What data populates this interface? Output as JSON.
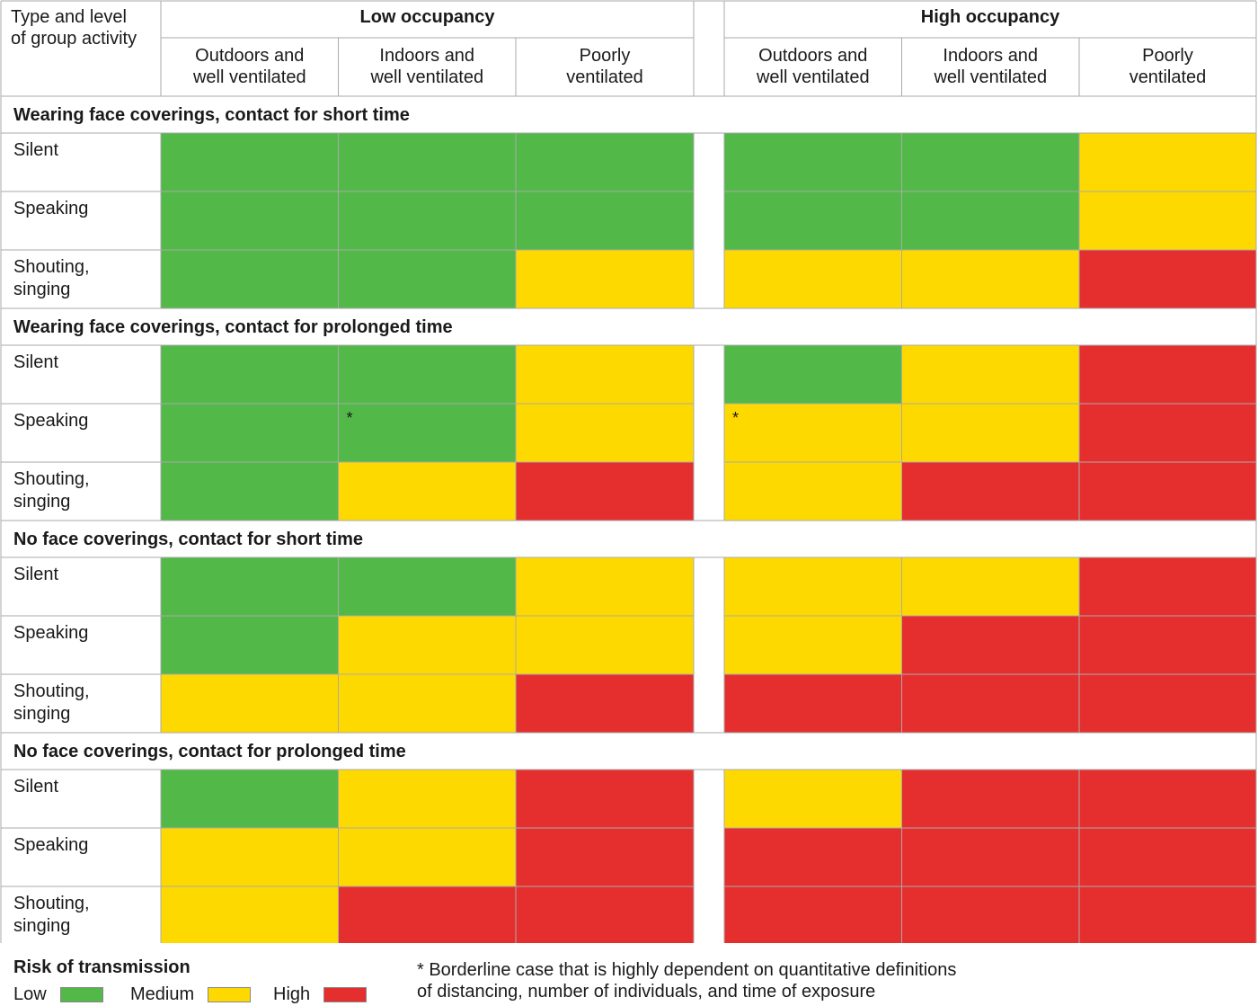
{
  "header": {
    "corner_label": [
      "Type and level",
      "of group activity"
    ],
    "groups": [
      "Low occupancy",
      "High occupancy"
    ],
    "columns": [
      [
        "Outdoors and",
        "well ventilated"
      ],
      [
        "Indoors and",
        "well ventilated"
      ],
      [
        "Poorly",
        "ventilated"
      ]
    ]
  },
  "colors": {
    "low": "#52b848",
    "medium": "#fed900",
    "high": "#e52f2f"
  },
  "chart_data": {
    "type": "heatmap",
    "title": "",
    "value_scale": [
      "low",
      "medium",
      "high"
    ],
    "sections": [
      {
        "title": "Wearing face coverings, contact for short time",
        "rows": [
          {
            "label": [
              "Silent"
            ],
            "low_occupancy": [
              "low",
              "low",
              "low"
            ],
            "high_occupancy": [
              "low",
              "low",
              "medium"
            ]
          },
          {
            "label": [
              "Speaking"
            ],
            "low_occupancy": [
              "low",
              "low",
              "low"
            ],
            "high_occupancy": [
              "low",
              "low",
              "medium"
            ]
          },
          {
            "label": [
              "Shouting,",
              "singing"
            ],
            "low_occupancy": [
              "low",
              "low",
              "medium"
            ],
            "high_occupancy": [
              "medium",
              "medium",
              "high"
            ]
          }
        ]
      },
      {
        "title": "Wearing face coverings, contact for prolonged time",
        "rows": [
          {
            "label": [
              "Silent"
            ],
            "low_occupancy": [
              "low",
              "low",
              "medium"
            ],
            "high_occupancy": [
              "low",
              "medium",
              "high"
            ]
          },
          {
            "label": [
              "Speaking"
            ],
            "low_occupancy": [
              "low",
              "low",
              "medium"
            ],
            "high_occupancy": [
              "medium",
              "medium",
              "high"
            ],
            "borderline_low": [
              1
            ],
            "borderline_high": [
              0
            ]
          },
          {
            "label": [
              "Shouting,",
              "singing"
            ],
            "low_occupancy": [
              "low",
              "medium",
              "high"
            ],
            "high_occupancy": [
              "medium",
              "high",
              "high"
            ]
          }
        ]
      },
      {
        "title": "No face coverings, contact for short time",
        "rows": [
          {
            "label": [
              "Silent"
            ],
            "low_occupancy": [
              "low",
              "low",
              "medium"
            ],
            "high_occupancy": [
              "medium",
              "medium",
              "high"
            ]
          },
          {
            "label": [
              "Speaking"
            ],
            "low_occupancy": [
              "low",
              "medium",
              "medium"
            ],
            "high_occupancy": [
              "medium",
              "high",
              "high"
            ]
          },
          {
            "label": [
              "Shouting,",
              "singing"
            ],
            "low_occupancy": [
              "medium",
              "medium",
              "high"
            ],
            "high_occupancy": [
              "high",
              "high",
              "high"
            ]
          }
        ]
      },
      {
        "title": "No face coverings, contact for prolonged time",
        "rows": [
          {
            "label": [
              "Silent"
            ],
            "low_occupancy": [
              "low",
              "medium",
              "high"
            ],
            "high_occupancy": [
              "medium",
              "high",
              "high"
            ]
          },
          {
            "label": [
              "Speaking"
            ],
            "low_occupancy": [
              "medium",
              "medium",
              "high"
            ],
            "high_occupancy": [
              "high",
              "high",
              "high"
            ]
          },
          {
            "label": [
              "Shouting,",
              "singing"
            ],
            "low_occupancy": [
              "medium",
              "high",
              "high"
            ],
            "high_occupancy": [
              "high",
              "high",
              "high"
            ]
          }
        ]
      }
    ],
    "borderline_marker": "*"
  },
  "legend": {
    "title": "Risk of transmission",
    "items": [
      {
        "label": "Low",
        "level": "low"
      },
      {
        "label": "Medium",
        "level": "medium"
      },
      {
        "label": "High",
        "level": "high"
      }
    ],
    "footnote_lines": [
      "* Borderline case that is highly dependent on quantitative definitions",
      "of distancing, number of individuals, and time of exposure"
    ]
  }
}
